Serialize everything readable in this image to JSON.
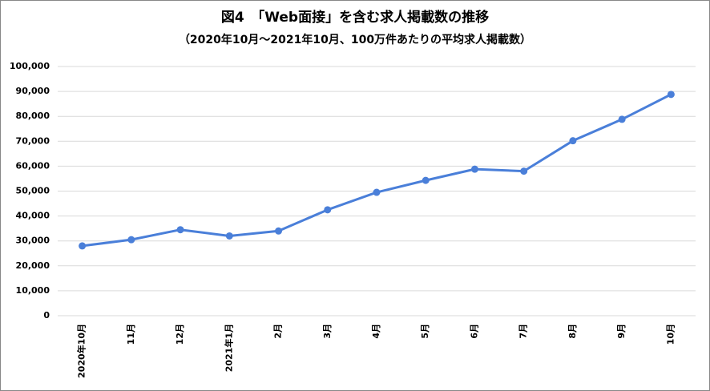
{
  "chart_data": {
    "type": "line",
    "title": "図4　「Web面接」を含む求人掲載数の推移",
    "subtitle": "（2020年10月～2021年10月、100万件あたりの平均求人掲載数）",
    "categories": [
      "2020年10月",
      "11月",
      "12月",
      "2021年1月",
      "2月",
      "3月",
      "4月",
      "5月",
      "6月",
      "7月",
      "8月",
      "9月",
      "10月"
    ],
    "series": [
      {
        "name": "求人掲載数",
        "color": "#4a7fd9",
        "values": [
          28000,
          30500,
          34500,
          32000,
          34000,
          42500,
          49500,
          54300,
          58800,
          58000,
          70200,
          78800,
          88800
        ]
      }
    ],
    "ylim": [
      0,
      100000
    ],
    "yticks": [
      0,
      {
        "value": 10000,
        "label": "10,000"
      },
      {
        "value": 20000,
        "label": "20,000"
      },
      {
        "value": 30000,
        "label": "30,000"
      },
      {
        "value": 40000,
        "label": "40,000"
      },
      {
        "value": 50000,
        "label": "50,000"
      },
      {
        "value": 60000,
        "label": "60,000"
      },
      {
        "value": 70000,
        "label": "70,000"
      },
      {
        "value": 80000,
        "label": "80,000"
      },
      {
        "value": 90000,
        "label": "90,000"
      },
      {
        "value": 100000,
        "label": "100,000"
      }
    ],
    "grid": true
  }
}
